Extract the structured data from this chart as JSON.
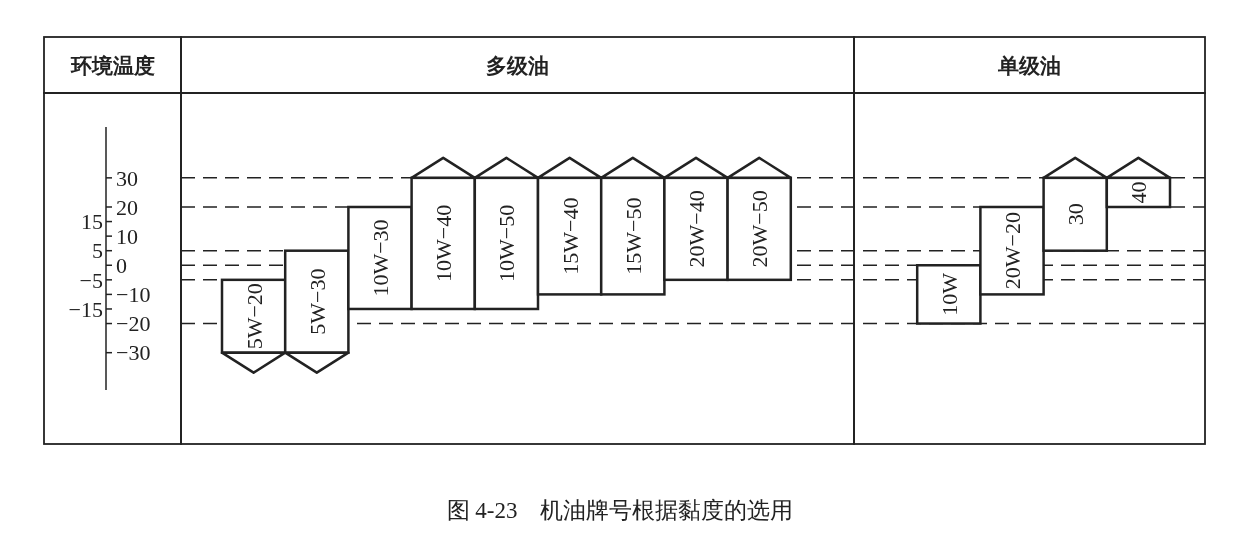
{
  "chart_data": {
    "type": "bar",
    "title": "图 4-23　机油牌号根据黏度的选用",
    "annotations": [
      "环境温度",
      "多级油",
      "单级油"
    ],
    "categories": [
      "5W−20",
      "5W−30",
      "10W−30",
      "10W−40",
      "10W−50",
      "15W−40",
      "15W−50",
      "20W−40",
      "20W−50",
      null,
      null,
      "10W",
      "20W−20",
      "30",
      "40"
    ],
    "base": [
      -30,
      -30,
      -15,
      -15,
      -15,
      -10,
      -10,
      -5,
      -5,
      null,
      null,
      -20,
      -10,
      5,
      20
    ],
    "values": [
      25,
      35,
      35,
      45,
      45,
      40,
      40,
      35,
      35,
      null,
      null,
      20,
      30,
      25,
      10
    ],
    "color": "#ffffff",
    "ylim": [
      -61,
      78
    ],
    "yticks": [
      15,
      5,
      -5,
      -15
    ],
    "y2lim": [
      -61,
      78
    ],
    "y2ticks": [
      30,
      20,
      10,
      0,
      -10,
      -20,
      -30
    ],
    "ref_lines": [
      {
        "axis": "y",
        "value": 30,
        "line_style": "dashed"
      },
      {
        "axis": "y",
        "value": 20,
        "line_style": "dashed"
      },
      {
        "axis": "y",
        "value": 5,
        "line_style": "dashed"
      },
      {
        "axis": "y",
        "value": 0,
        "line_style": "dashed"
      },
      {
        "axis": "y",
        "value": -5,
        "line_style": "dashed"
      },
      {
        "axis": "y",
        "value": -20,
        "line_style": "dashed"
      }
    ]
  }
}
